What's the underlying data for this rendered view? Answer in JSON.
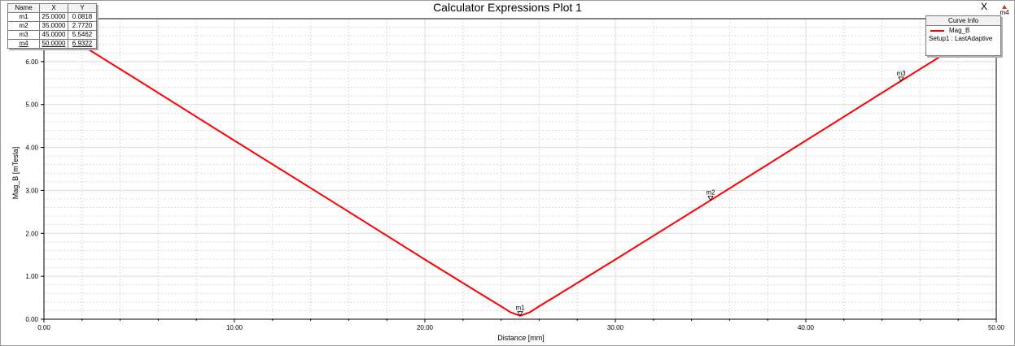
{
  "window": {
    "title": "Calculator Expressions Plot 1",
    "close_label": "X"
  },
  "colors": {
    "series": "#ff0000",
    "grid": "#dcdcdc",
    "background": "#ffffff",
    "marker_m4": "#c0392b"
  },
  "marker_table": {
    "headers": [
      "Name",
      "X",
      "Y"
    ],
    "rows": [
      {
        "name": "m1",
        "x": "25.0000",
        "y": "0.0818"
      },
      {
        "name": "m2",
        "x": "35.0000",
        "y": "2.7720"
      },
      {
        "name": "m3",
        "x": "45.0000",
        "y": "5.5462"
      },
      {
        "name": "m4",
        "x": "50.0000",
        "y": "6.9322"
      }
    ]
  },
  "curve_info": {
    "header": "Curve Info",
    "series_name": "Mag_B",
    "setup": "Setup1 : LastAdaptive"
  },
  "chart_data": {
    "type": "line",
    "title": "Calculator Expressions Plot 1",
    "xlabel": "Distance [mm]",
    "ylabel": "Mag_B [mTesla]",
    "xlim": [
      0,
      50
    ],
    "ylim": [
      0,
      7
    ],
    "xticks": [
      "0.00",
      "10.00",
      "20.00",
      "30.00",
      "40.00",
      "50.00"
    ],
    "yticks": [
      "0.00",
      "1.00",
      "2.00",
      "3.00",
      "4.00",
      "5.00",
      "6.00"
    ],
    "grid": true,
    "legend_position": "top-right",
    "series": [
      {
        "name": "Mag_B",
        "color": "#ff0000",
        "x": [
          0,
          5,
          10,
          15,
          20,
          23,
          24,
          24.5,
          25,
          25.5,
          26,
          27,
          30,
          35,
          40,
          45,
          48,
          50
        ],
        "y": [
          6.93,
          5.55,
          4.16,
          2.78,
          1.39,
          0.57,
          0.3,
          0.16,
          0.08,
          0.16,
          0.3,
          0.57,
          1.39,
          2.77,
          4.16,
          5.55,
          6.38,
          6.93
        ]
      }
    ],
    "markers": [
      {
        "name": "m1",
        "x": 25,
        "y": 0.0818
      },
      {
        "name": "m2",
        "x": 35,
        "y": 2.772
      },
      {
        "name": "m3",
        "x": 45,
        "y": 5.5462
      },
      {
        "name": "m4",
        "x": 50,
        "y": 6.9322
      }
    ]
  }
}
